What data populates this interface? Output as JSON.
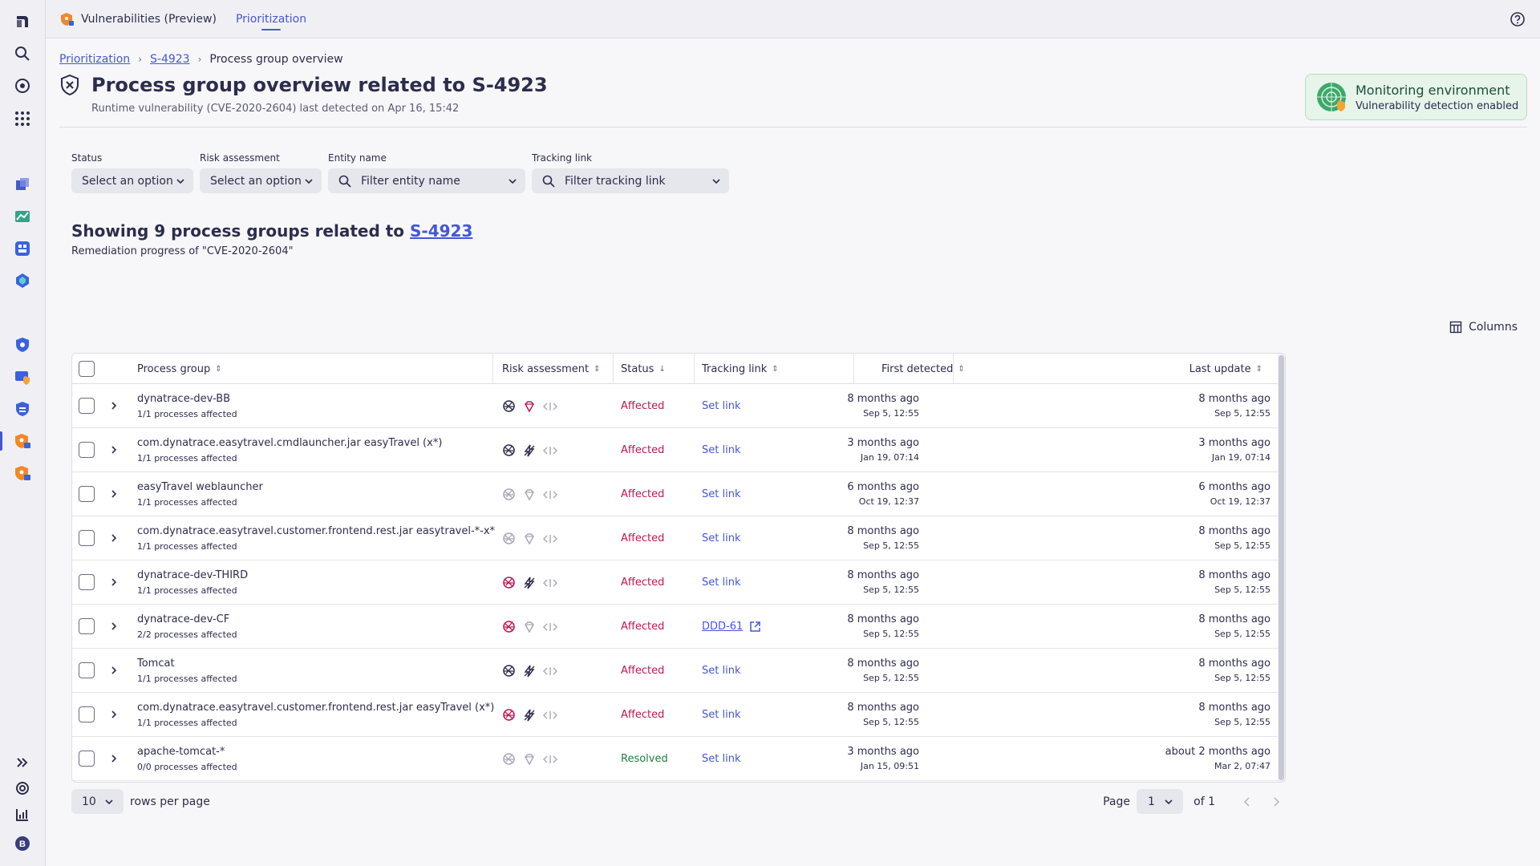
{
  "app": {
    "title": "Vulnerabilities (Preview)",
    "active_tab": "Prioritization"
  },
  "breadcrumb": {
    "items": [
      "Prioritization",
      "S-4923"
    ],
    "current": "Process group overview"
  },
  "header": {
    "title": "Process group overview related to S-4923",
    "subtitle": "Runtime vulnerability (CVE-2020-2604) last detected on Apr 16, 15:42"
  },
  "monitoring": {
    "title": "Monitoring environment",
    "subtitle": "Vulnerability detection enabled"
  },
  "filters": [
    {
      "label": "Status",
      "placeholder": "Select an option"
    },
    {
      "label": "Risk assessment",
      "placeholder": "Select an option"
    },
    {
      "label": "Entity name",
      "placeholder": "Filter entity name"
    },
    {
      "label": "Tracking link",
      "placeholder": "Filter tracking link"
    }
  ],
  "summary": {
    "prefix": "Showing 9 process groups related to ",
    "link": "S-4923",
    "subtitle": "Remediation progress of \"CVE-2020-2604\""
  },
  "columns_button": "Columns",
  "table": {
    "headers": {
      "process_group": "Process group",
      "risk_assessment": "Risk assessment",
      "status": "Status",
      "tracking_link": "Tracking link",
      "first_detected": "First detected",
      "last_update": "Last update"
    },
    "rows": [
      {
        "name": "dynatrace-dev-BB",
        "sub": "1/1 processes affected",
        "status": "Affected",
        "link": "Set link",
        "first_rel": "8 months ago",
        "first_abs": "Sep 5, 12:55",
        "last_rel": "8 months ago",
        "last_abs": "Sep 5, 12:55"
      },
      {
        "name": "com.dynatrace.easytravel.cmdlauncher.jar easyTravel (x*)",
        "sub": "1/1 processes affected",
        "status": "Affected",
        "link": "Set link",
        "first_rel": "3 months ago",
        "first_abs": "Jan 19, 07:14",
        "last_rel": "3 months ago",
        "last_abs": "Jan 19, 07:14"
      },
      {
        "name": "easyTravel weblauncher",
        "sub": "1/1 processes affected",
        "status": "Affected",
        "link": "Set link",
        "first_rel": "6 months ago",
        "first_abs": "Oct 19, 12:37",
        "last_rel": "6 months ago",
        "last_abs": "Oct 19, 12:37"
      },
      {
        "name": "com.dynatrace.easytravel.customer.frontend.rest.jar easytravel-*-x*",
        "sub": "1/1 processes affected",
        "status": "Affected",
        "link": "Set link",
        "first_rel": "8 months ago",
        "first_abs": "Sep 5, 12:55",
        "last_rel": "8 months ago",
        "last_abs": "Sep 5, 12:55"
      },
      {
        "name": "dynatrace-dev-THIRD",
        "sub": "1/1 processes affected",
        "status": "Affected",
        "link": "Set link",
        "first_rel": "8 months ago",
        "first_abs": "Sep 5, 12:55",
        "last_rel": "8 months ago",
        "last_abs": "Sep 5, 12:55"
      },
      {
        "name": "dynatrace-dev-CF",
        "sub": "2/2 processes affected",
        "status": "Affected",
        "link": "DDD-61",
        "first_rel": "8 months ago",
        "first_abs": "Sep 5, 12:55",
        "last_rel": "8 months ago",
        "last_abs": "Sep 5, 12:55"
      },
      {
        "name": "Tomcat",
        "sub": "1/1 processes affected",
        "status": "Affected",
        "link": "Set link",
        "first_rel": "8 months ago",
        "first_abs": "Sep 5, 12:55",
        "last_rel": "8 months ago",
        "last_abs": "Sep 5, 12:55"
      },
      {
        "name": "com.dynatrace.easytravel.customer.frontend.rest.jar easyTravel (x*)",
        "sub": "1/1 processes affected",
        "status": "Affected",
        "link": "Set link",
        "first_rel": "8 months ago",
        "first_abs": "Sep 5, 12:55",
        "last_rel": "8 months ago",
        "last_abs": "Sep 5, 12:55"
      },
      {
        "name": "apache-tomcat-*",
        "sub": "0/0 processes affected",
        "status": "Resolved",
        "link": "Set link",
        "first_rel": "3 months ago",
        "first_abs": "Jan 15, 09:51",
        "last_rel": "about 2 months ago",
        "last_abs": "Mar 2, 07:47"
      }
    ]
  },
  "pagination": {
    "rows_per_page": "10",
    "rows_per_page_label": "rows per page",
    "page_label": "Page",
    "page": "1",
    "of_label": "of 1"
  },
  "colors": {
    "accent": "#4556d7",
    "affected": "#c2154f",
    "resolved": "#1d7d3f"
  }
}
